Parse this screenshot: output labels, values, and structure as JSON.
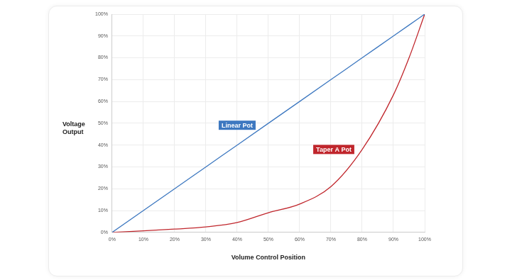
{
  "chart_data": {
    "type": "line",
    "x_label": "Volume Control Position",
    "y_label": "Voltage Output",
    "x": [
      0,
      10,
      20,
      30,
      40,
      50,
      60,
      70,
      80,
      90,
      95,
      100
    ],
    "series": [
      {
        "name": "Linear Pot",
        "color": "#3d78c0",
        "values": [
          0,
          10,
          20,
          30,
          40,
          50,
          60,
          70,
          80,
          90,
          95,
          100
        ]
      },
      {
        "name": "Taper A Pot",
        "color": "#c0262c",
        "values": [
          0,
          0.7,
          1.5,
          2.5,
          4.5,
          9,
          13,
          21,
          38,
          63,
          80,
          100
        ]
      }
    ],
    "xlim": [
      0,
      100
    ],
    "xticks": [
      {
        "value": 0,
        "label": "0%"
      },
      {
        "value": 10,
        "label": "10%"
      },
      {
        "value": 20,
        "label": "20%"
      },
      {
        "value": 30,
        "label": "30%"
      },
      {
        "value": 40,
        "label": "40%"
      },
      {
        "value": 50,
        "label": "50%"
      },
      {
        "value": 60,
        "label": "60%"
      },
      {
        "value": 70,
        "label": "70%"
      },
      {
        "value": 80,
        "label": "80%"
      },
      {
        "value": 90,
        "label": "90%"
      },
      {
        "value": 100,
        "label": "100%"
      }
    ],
    "ylim": [
      0,
      100
    ],
    "yticks": [
      {
        "value": 0,
        "label": "0%"
      },
      {
        "value": 10,
        "label": "10%"
      },
      {
        "value": 20,
        "label": "20%"
      },
      {
        "value": 30,
        "label": "30%"
      },
      {
        "value": 40,
        "label": "40%"
      },
      {
        "value": 50,
        "label": "50%"
      },
      {
        "value": 60,
        "label": "60%"
      },
      {
        "value": 70,
        "label": "70%"
      },
      {
        "value": 80,
        "label": "80%"
      },
      {
        "value": 90,
        "label": "90%"
      },
      {
        "value": 100,
        "label": "100%"
      }
    ],
    "grid": true
  }
}
